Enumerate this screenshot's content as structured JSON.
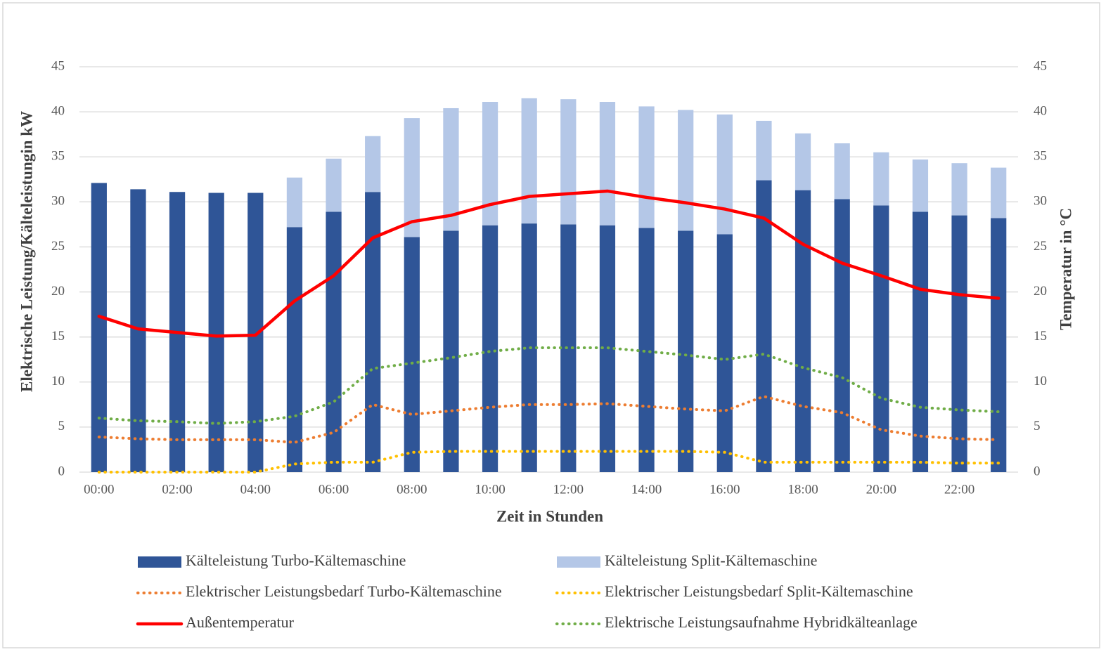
{
  "chart_data": {
    "type": "combo",
    "x_label": "Zeit in Stunden",
    "y_label": "Elektrische Leistung/Kälteleistungin kW",
    "y2_label": "Temperatur in °C",
    "categories": [
      "00:00",
      null,
      "02:00",
      null,
      "04:00",
      null,
      "06:00",
      null,
      "08:00",
      null,
      "10:00",
      null,
      "12:00",
      null,
      "14:00",
      null,
      "16:00",
      null,
      "18:00",
      null,
      "20:00",
      null,
      "22:00",
      null
    ],
    "ylim": [
      0,
      45
    ],
    "yticks": [
      0,
      5,
      10,
      15,
      20,
      25,
      30,
      35,
      40,
      45
    ],
    "y2lim": [
      0,
      45
    ],
    "y2ticks": [
      0,
      5,
      10,
      15,
      20,
      25,
      30,
      35,
      40,
      45
    ],
    "grid": true,
    "legend": "bottom",
    "series": [
      {
        "name": "Kälteleistung Turbo-Kältemaschine",
        "type": "bar",
        "color": "#2f5597",
        "values": [
          32.1,
          31.4,
          31.1,
          31.0,
          31.0,
          27.2,
          28.9,
          31.1,
          26.1,
          26.8,
          27.4,
          27.6,
          27.5,
          27.4,
          27.1,
          26.8,
          26.4,
          32.4,
          31.3,
          30.3,
          29.6,
          28.9,
          28.5,
          28.2
        ]
      },
      {
        "name": "Kälteleistung Split-Kältemaschine",
        "type": "bar",
        "color": "#b4c7e7",
        "values": [
          0,
          0,
          0,
          0,
          0,
          5.5,
          5.9,
          6.2,
          13.2,
          13.6,
          13.7,
          13.9,
          13.9,
          13.7,
          13.5,
          13.4,
          13.3,
          6.6,
          6.3,
          6.2,
          5.9,
          5.8,
          5.8,
          5.6
        ]
      },
      {
        "name": "Elektrischer Leistungsbedarf Turbo-Kältemaschine",
        "type": "line",
        "style": "dotted",
        "color": "#ed7d31",
        "values": [
          3.9,
          3.7,
          3.6,
          3.6,
          3.6,
          3.3,
          4.4,
          7.5,
          6.4,
          6.8,
          7.2,
          7.5,
          7.5,
          7.6,
          7.3,
          7.0,
          6.8,
          8.4,
          7.3,
          6.6,
          4.7,
          4.0,
          3.7,
          3.6
        ]
      },
      {
        "name": "Elektrischer Leistungsbedarf Split-Kältemaschine",
        "type": "line",
        "style": "dotted",
        "color": "#ffc000",
        "values": [
          0,
          0,
          0,
          0,
          0,
          0.9,
          1.1,
          1.1,
          2.2,
          2.3,
          2.3,
          2.3,
          2.3,
          2.3,
          2.3,
          2.3,
          2.2,
          1.1,
          1.1,
          1.1,
          1.1,
          1.1,
          1.0,
          1.0
        ]
      },
      {
        "name": "Außentemperatur",
        "type": "line",
        "style": "solid",
        "color": "#ff0000",
        "axis": "y2",
        "values": [
          17.3,
          15.9,
          15.5,
          15.1,
          15.2,
          19.0,
          21.8,
          26.0,
          27.8,
          28.5,
          29.7,
          30.6,
          30.9,
          31.2,
          30.5,
          29.9,
          29.2,
          28.2,
          25.3,
          23.2,
          21.8,
          20.3,
          19.7,
          19.3
        ]
      },
      {
        "name": "Elektrische Leistungsaufnahme Hybridkälteanlage",
        "type": "line",
        "style": "dotted",
        "color": "#70ad47",
        "values": [
          6.0,
          5.7,
          5.6,
          5.4,
          5.6,
          6.2,
          7.8,
          11.5,
          12.1,
          12.7,
          13.4,
          13.8,
          13.8,
          13.8,
          13.4,
          13.0,
          12.5,
          13.1,
          11.6,
          10.5,
          8.2,
          7.2,
          6.9,
          6.7
        ]
      }
    ]
  }
}
